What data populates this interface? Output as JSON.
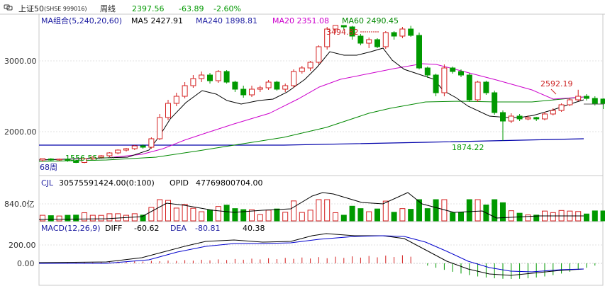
{
  "header": {
    "title_prefix": "上证50",
    "symbol": "(SHSE 999016)",
    "period": "周线",
    "price": "2397.56",
    "change": "-63.89",
    "change_pct": "-2.60%"
  },
  "ma_legend": {
    "label": "MA组合(5,240,20,60)",
    "ma5": "MA5 2427.91",
    "ma240": "MA240 1898.81",
    "ma20": "MA20 2351.08",
    "ma60": "MA60 2490.45"
  },
  "vol_legend": {
    "label": "CJL",
    "value": "30575591424.00(0:100)",
    "opid_label": "OPID",
    "opid_value": "47769800704.00"
  },
  "macd_legend": {
    "label": "MACD(12,26,9)",
    "diff": "DIFF",
    "diff_val": "-60.62",
    "dea": "DEA",
    "dea_val": "-80.81",
    "macd_val": "40.38"
  },
  "axis": {
    "price_ticks": [
      "3000.00",
      "2000.00"
    ],
    "vol_tick": "840.0亿",
    "macd_ticks": [
      "200.00",
      "0.00"
    ]
  },
  "annotations": {
    "high": "3494.82",
    "low": "1874.22",
    "recent_high": "2592.19",
    "start_low": "1556.55",
    "bar_count": "68周"
  },
  "colors": {
    "up": "#d42020",
    "down": "#009900",
    "ma5": "#000000",
    "ma20": "#cc00cc",
    "ma60": "#008800",
    "ma240": "#0000aa",
    "legend_blue": "#1a1aa0",
    "diff": "#000000",
    "dea": "#0000cc"
  },
  "chart_data": {
    "type": "candlestick",
    "bars": 68,
    "price_range": [
      1500,
      3600
    ],
    "candles": [
      [
        1600,
        1620,
        1580,
        1625,
        1575
      ],
      [
        1615,
        1600,
        1585,
        1625,
        1580
      ],
      [
        1600,
        1612,
        1590,
        1620,
        1585
      ],
      [
        1612,
        1590,
        1580,
        1618,
        1575
      ],
      [
        1590,
        1565,
        1556.55,
        1600,
        1556.55
      ],
      [
        1565,
        1620,
        1560,
        1630,
        1555
      ],
      [
        1620,
        1640,
        1610,
        1650,
        1600
      ],
      [
        1640,
        1660,
        1630,
        1670,
        1625
      ],
      [
        1660,
        1700,
        1650,
        1710,
        1640
      ],
      [
        1700,
        1740,
        1690,
        1750,
        1680
      ],
      [
        1740,
        1760,
        1730,
        1770,
        1720
      ],
      [
        1760,
        1800,
        1750,
        1810,
        1740
      ],
      [
        1800,
        1780,
        1760,
        1820,
        1760
      ],
      [
        1780,
        1900,
        1770,
        1920,
        1760
      ],
      [
        1900,
        2200,
        1890,
        2250,
        1880
      ],
      [
        2200,
        2400,
        2180,
        2450,
        2160
      ],
      [
        2400,
        2500,
        2380,
        2550,
        2360
      ],
      [
        2500,
        2650,
        2480,
        2700,
        2470
      ],
      [
        2650,
        2750,
        2630,
        2800,
        2620
      ],
      [
        2750,
        2800,
        2720,
        2850,
        2700
      ],
      [
        2800,
        2720,
        2680,
        2830,
        2680
      ],
      [
        2720,
        2850,
        2700,
        2870,
        2690
      ],
      [
        2850,
        2700,
        2680,
        2870,
        2680
      ],
      [
        2700,
        2600,
        2560,
        2720,
        2560
      ],
      [
        2600,
        2520,
        2480,
        2650,
        2480
      ],
      [
        2520,
        2600,
        2500,
        2650,
        2490
      ],
      [
        2600,
        2620,
        2580,
        2650,
        2560
      ],
      [
        2620,
        2700,
        2600,
        2730,
        2590
      ],
      [
        2700,
        2600,
        2580,
        2720,
        2580
      ],
      [
        2600,
        2650,
        2580,
        2680,
        2560
      ],
      [
        2650,
        2850,
        2640,
        2880,
        2620
      ],
      [
        2850,
        2900,
        2830,
        2930,
        2820
      ],
      [
        2900,
        2980,
        2880,
        3000,
        2860
      ],
      [
        2980,
        3200,
        2970,
        3220,
        2950
      ],
      [
        3200,
        3450,
        3180,
        3480,
        3160
      ],
      [
        3450,
        3500,
        3420,
        3494.82,
        3400
      ],
      [
        3500,
        3480,
        3450,
        3494.82,
        3440
      ],
      [
        3480,
        3350,
        3300,
        3494.82,
        3300
      ],
      [
        3350,
        3250,
        3220,
        3380,
        3220
      ],
      [
        3250,
        3300,
        3200,
        3330,
        3180
      ],
      [
        3300,
        3200,
        3180,
        3320,
        3180
      ],
      [
        3200,
        3400,
        3180,
        3420,
        3170
      ],
      [
        3400,
        3350,
        3320,
        3420,
        3300
      ],
      [
        3350,
        3450,
        3330,
        3480,
        3320
      ],
      [
        3450,
        3360,
        3340,
        3494.82,
        3340
      ],
      [
        3360,
        2900,
        2880,
        3400,
        2880
      ],
      [
        2900,
        2800,
        2780,
        2920,
        2760
      ],
      [
        2800,
        2550,
        2520,
        2820,
        2500
      ],
      [
        2550,
        2900,
        2530,
        2950,
        2500
      ],
      [
        2900,
        2850,
        2830,
        2920,
        2820
      ],
      [
        2850,
        2800,
        2780,
        2880,
        2770
      ],
      [
        2800,
        2450,
        2430,
        2830,
        2420
      ],
      [
        2450,
        2700,
        2440,
        2720,
        2420
      ],
      [
        2700,
        2550,
        2530,
        2720,
        2520
      ],
      [
        2550,
        2270,
        2250,
        2580,
        2240
      ],
      [
        2270,
        2150,
        2130,
        2300,
        1874.22
      ],
      [
        2150,
        2220,
        2140,
        2260,
        2120
      ],
      [
        2220,
        2180,
        2160,
        2250,
        2150
      ],
      [
        2180,
        2200,
        2170,
        2230,
        2160
      ],
      [
        2200,
        2180,
        2170,
        2210,
        2150
      ],
      [
        2180,
        2250,
        2170,
        2280,
        2160
      ],
      [
        2250,
        2300,
        2240,
        2330,
        2230
      ],
      [
        2300,
        2380,
        2290,
        2400,
        2280
      ],
      [
        2380,
        2450,
        2370,
        2480,
        2360
      ],
      [
        2450,
        2500,
        2440,
        2592.19,
        2430
      ],
      [
        2500,
        2470,
        2440,
        2530,
        2440
      ],
      [
        2470,
        2400,
        2380,
        2500,
        2370
      ],
      [
        2461,
        2397.56,
        2370,
        2470,
        2320
      ]
    ],
    "volume_unit": "亿",
    "volume_ticks": [
      840
    ],
    "macd_ticks": [
      200,
      0
    ],
    "series": [
      {
        "name": "MA5",
        "value": 2427.91
      },
      {
        "name": "MA240",
        "value": 1898.81
      },
      {
        "name": "MA20",
        "value": 2351.08
      },
      {
        "name": "MA60",
        "value": 2490.45
      },
      {
        "name": "DIFF",
        "value": -60.62
      },
      {
        "name": "DEA",
        "value": -80.81
      },
      {
        "name": "MACD",
        "value": 40.38
      }
    ]
  }
}
